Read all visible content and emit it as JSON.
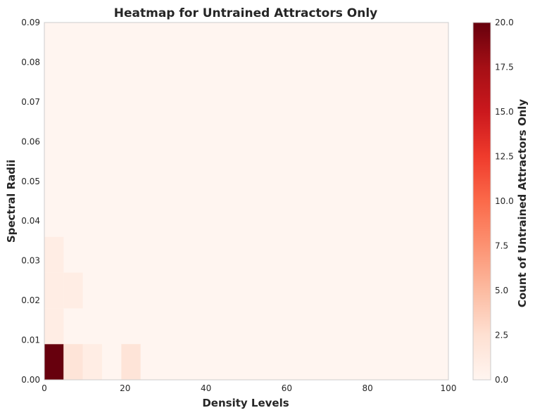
{
  "chart_data": {
    "type": "heatmap",
    "title": "Heatmap for Untrained Attractors Only",
    "xlabel": "Density Levels",
    "ylabel": "Spectral Radii",
    "xlim": [
      0,
      100
    ],
    "ylim": [
      0,
      0.09
    ],
    "x_bin_width": 4.76,
    "y_bin_width": 0.009,
    "x_ticks": [
      "0",
      "20",
      "40",
      "60",
      "80",
      "100"
    ],
    "x_tick_values": [
      0,
      20,
      40,
      60,
      80,
      100
    ],
    "y_ticks": [
      "0.00",
      "0.01",
      "0.02",
      "0.03",
      "0.04",
      "0.05",
      "0.06",
      "0.07",
      "0.08",
      "0.09"
    ],
    "y_tick_values": [
      0,
      0.01,
      0.02,
      0.03,
      0.04,
      0.05,
      0.06,
      0.07,
      0.08,
      0.09
    ],
    "background_count": 0,
    "cells": [
      {
        "x": 0,
        "y": 0,
        "count": 20
      },
      {
        "x": 4.76,
        "y": 0,
        "count": 2
      },
      {
        "x": 9.52,
        "y": 0,
        "count": 1
      },
      {
        "x": 19.05,
        "y": 0,
        "count": 2
      },
      {
        "x": 0,
        "y": 0.009,
        "count": 1
      },
      {
        "x": 0,
        "y": 0.018,
        "count": 1
      },
      {
        "x": 4.76,
        "y": 0.018,
        "count": 1
      },
      {
        "x": 0,
        "y": 0.027,
        "count": 1
      }
    ],
    "colorbar": {
      "label": "Count of Untrained Attractors Only",
      "min": 0,
      "max": 20,
      "ticks": [
        "0.0",
        "2.5",
        "5.0",
        "7.5",
        "10.0",
        "12.5",
        "15.0",
        "17.5",
        "20.0"
      ],
      "tick_values": [
        0,
        2.5,
        5,
        7.5,
        10,
        12.5,
        15,
        17.5,
        20
      ],
      "colormap": "Reds"
    },
    "grid": false
  }
}
